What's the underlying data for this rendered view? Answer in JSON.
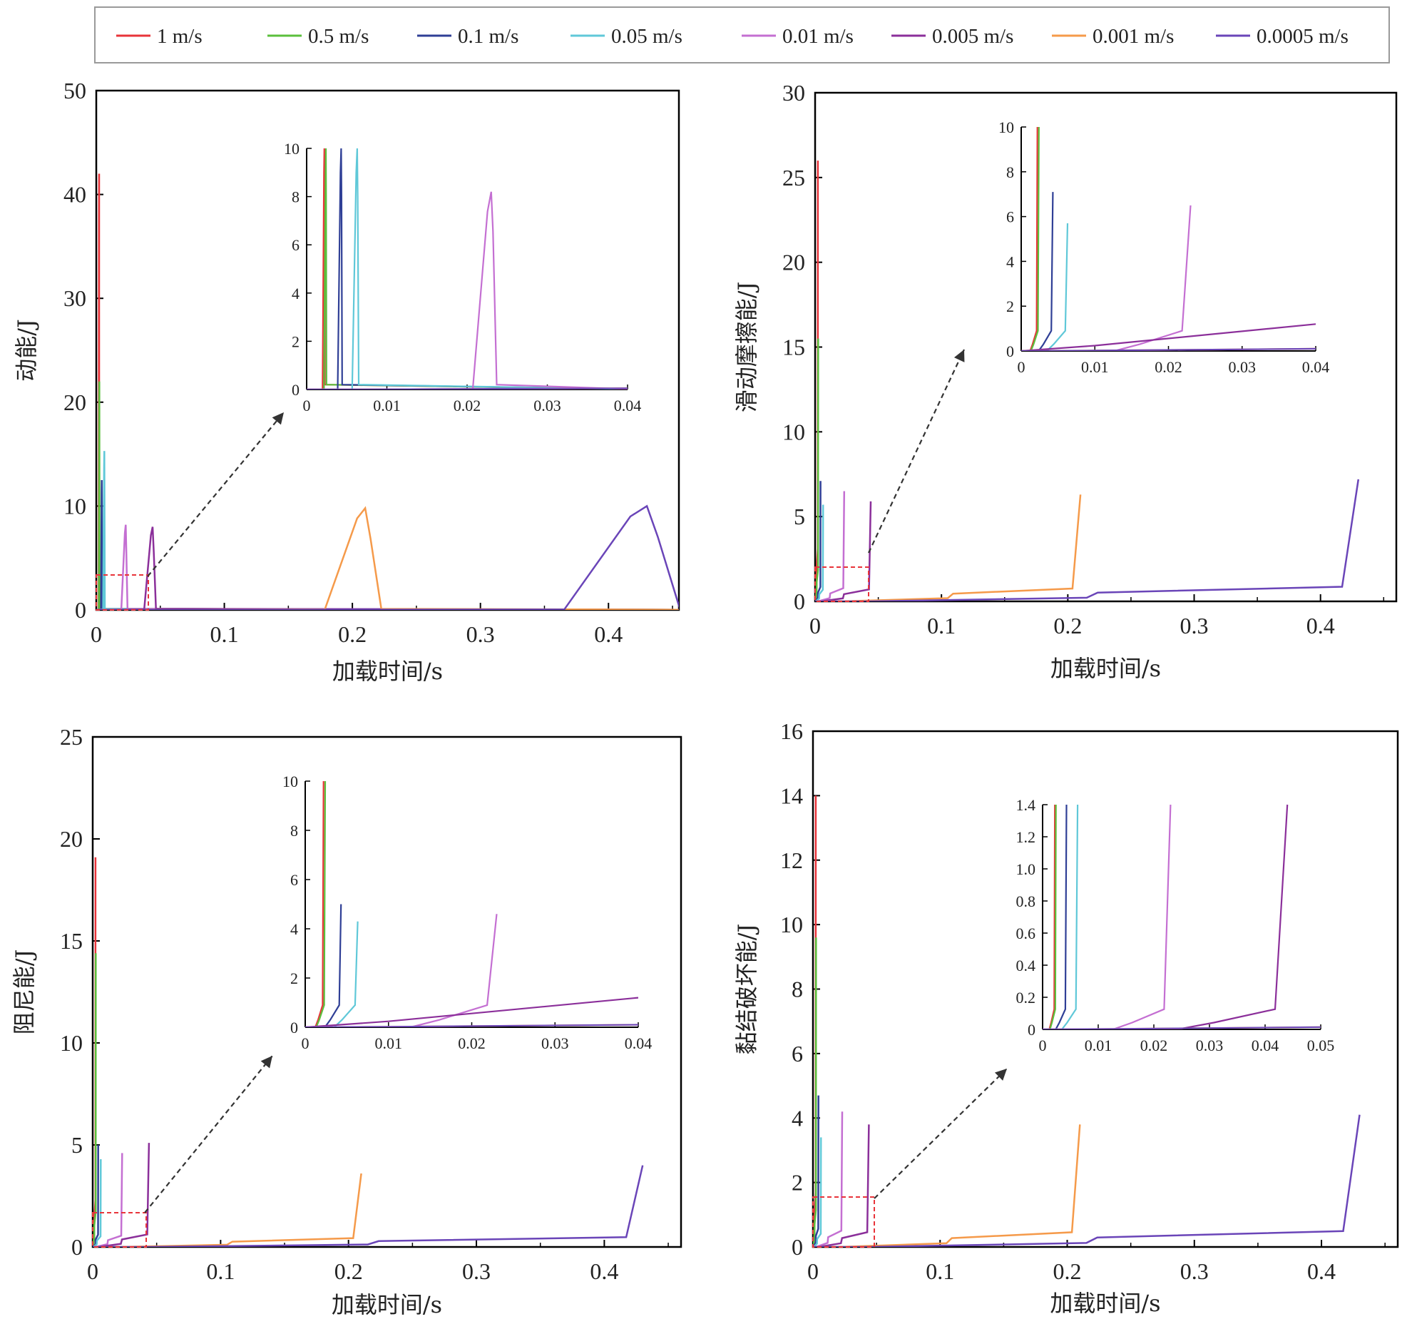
{
  "legend": {
    "items": [
      {
        "label": "1 m/s",
        "color": "#e8343a"
      },
      {
        "label": "0.5 m/s",
        "color": "#5bbf3c"
      },
      {
        "label": "0.1 m/s",
        "color": "#2f3f96"
      },
      {
        "label": "0.05 m/s",
        "color": "#5fc8d8"
      },
      {
        "label": "0.01 m/s",
        "color": "#c46fd2"
      },
      {
        "label": "0.005 m/s",
        "color": "#8b2f9a"
      },
      {
        "label": "0.001 m/s",
        "color": "#f59a4a"
      },
      {
        "label": "0.0005 m/s",
        "color": "#6a45b8"
      }
    ]
  },
  "chart_data": [
    {
      "type": "line",
      "ylabel": "动能/J",
      "xlabel": "加载时间/s",
      "xlim": [
        0,
        0.455
      ],
      "ylim": [
        0,
        50
      ],
      "xticks": [
        "0",
        "0.1",
        "0.2",
        "0.3",
        "0.4"
      ],
      "yticks": [
        "0",
        "10",
        "20",
        "30",
        "40",
        "50"
      ],
      "series": [
        {
          "name": "1 m/s",
          "peak_time": 0.0022,
          "peak_value": 42
        },
        {
          "name": "0.5 m/s",
          "peak_time": 0.0024,
          "peak_value": 22
        },
        {
          "name": "0.1 m/s",
          "peak_time": 0.0043,
          "peak_value": 12.5
        },
        {
          "name": "0.05 m/s",
          "peak_time": 0.0063,
          "peak_value": 15.3
        },
        {
          "name": "0.01 m/s",
          "peak_time": 0.023,
          "peak_value": 8.2
        },
        {
          "name": "0.005 m/s",
          "peak_time": 0.044,
          "peak_value": 8
        },
        {
          "name": "0.001 m/s",
          "peak_time": 0.21,
          "peak_value": 9.8
        },
        {
          "name": "0.0005 m/s",
          "peak_time": 0.43,
          "peak_value": 10
        }
      ],
      "inset": {
        "xlim": [
          0,
          0.04
        ],
        "ylim": [
          0,
          10
        ],
        "xticks": [
          "0",
          "0.01",
          "0.02",
          "0.03",
          "0.04"
        ],
        "yticks": [
          "0",
          "2",
          "4",
          "6",
          "8",
          "10"
        ]
      }
    },
    {
      "type": "line",
      "ylabel": "滑动摩擦能/J",
      "xlabel": "加载时间/s",
      "xlim": [
        0,
        0.46
      ],
      "ylim": [
        0,
        30
      ],
      "xticks": [
        "0",
        "0.1",
        "0.2",
        "0.3",
        "0.4"
      ],
      "yticks": [
        "0",
        "5",
        "10",
        "15",
        "20",
        "25",
        "30"
      ],
      "series": [
        {
          "name": "1 m/s",
          "end_time": 0.0022,
          "end_value": 26
        },
        {
          "name": "0.5 m/s",
          "end_time": 0.0024,
          "end_value": 15.5
        },
        {
          "name": "0.1 m/s",
          "end_time": 0.0043,
          "end_value": 7.1
        },
        {
          "name": "0.05 m/s",
          "end_time": 0.0063,
          "end_value": 5.7
        },
        {
          "name": "0.01 m/s",
          "end_time": 0.023,
          "end_value": 6.5
        },
        {
          "name": "0.005 m/s",
          "end_time": 0.044,
          "end_value": 5.9
        },
        {
          "name": "0.001 m/s",
          "end_time": 0.21,
          "end_value": 6.3
        },
        {
          "name": "0.0005 m/s",
          "end_time": 0.43,
          "end_value": 7.2
        }
      ],
      "inset": {
        "xlim": [
          0,
          0.04
        ],
        "ylim": [
          0,
          10
        ],
        "xticks": [
          "0",
          "0.01",
          "0.02",
          "0.03",
          "0.04"
        ],
        "yticks": [
          "0",
          "2",
          "4",
          "6",
          "8",
          "10"
        ]
      }
    },
    {
      "type": "line",
      "ylabel": "阻尼能/J",
      "xlabel": "加载时间/s",
      "xlim": [
        0,
        0.46
      ],
      "ylim": [
        0,
        25
      ],
      "xticks": [
        "0",
        "0.1",
        "0.2",
        "0.3",
        "0.4"
      ],
      "yticks": [
        "0",
        "5",
        "10",
        "15",
        "20",
        "25"
      ],
      "series": [
        {
          "name": "1 m/s",
          "end_time": 0.0022,
          "end_value": 19.1
        },
        {
          "name": "0.5 m/s",
          "end_time": 0.0024,
          "end_value": 14.4
        },
        {
          "name": "0.1 m/s",
          "end_time": 0.0043,
          "end_value": 5
        },
        {
          "name": "0.05 m/s",
          "end_time": 0.0063,
          "end_value": 4.3
        },
        {
          "name": "0.01 m/s",
          "end_time": 0.023,
          "end_value": 4.6
        },
        {
          "name": "0.005 m/s",
          "end_time": 0.044,
          "end_value": 5.1
        },
        {
          "name": "0.001 m/s",
          "end_time": 0.21,
          "end_value": 3.6
        },
        {
          "name": "0.0005 m/s",
          "end_time": 0.43,
          "end_value": 4
        }
      ],
      "inset": {
        "xlim": [
          0,
          0.04
        ],
        "ylim": [
          0,
          10
        ],
        "xticks": [
          "0",
          "0.01",
          "0.02",
          "0.03",
          "0.04"
        ],
        "yticks": [
          "0",
          "2",
          "4",
          "6",
          "8",
          "10"
        ]
      }
    },
    {
      "type": "line",
      "ylabel": "黏结破坏能/J",
      "xlabel": "加载时间/s",
      "xlim": [
        0,
        0.46
      ],
      "ylim": [
        0,
        16
      ],
      "xticks": [
        "0",
        "0.1",
        "0.2",
        "0.3",
        "0.4"
      ],
      "yticks": [
        "0",
        "2",
        "4",
        "6",
        "8",
        "10",
        "12",
        "14",
        "16"
      ],
      "series": [
        {
          "name": "1 m/s",
          "end_time": 0.0022,
          "end_value": 14
        },
        {
          "name": "0.5 m/s",
          "end_time": 0.0024,
          "end_value": 9.6
        },
        {
          "name": "0.1 m/s",
          "end_time": 0.0043,
          "end_value": 4.7
        },
        {
          "name": "0.05 m/s",
          "end_time": 0.0063,
          "end_value": 3.4
        },
        {
          "name": "0.01 m/s",
          "end_time": 0.023,
          "end_value": 4.2
        },
        {
          "name": "0.005 m/s",
          "end_time": 0.044,
          "end_value": 3.8
        },
        {
          "name": "0.001 m/s",
          "end_time": 0.21,
          "end_value": 3.8
        },
        {
          "name": "0.0005 m/s",
          "end_time": 0.43,
          "end_value": 4.1
        }
      ],
      "inset": {
        "xlim": [
          0,
          0.05
        ],
        "ylim": [
          0,
          1.4
        ],
        "xticks": [
          "0",
          "0.01",
          "0.02",
          "0.03",
          "0.04",
          "0.05"
        ],
        "yticks": [
          "0",
          "0.2",
          "0.4",
          "0.6",
          "0.8",
          "1.0",
          "1.2",
          "1.4"
        ]
      }
    }
  ]
}
